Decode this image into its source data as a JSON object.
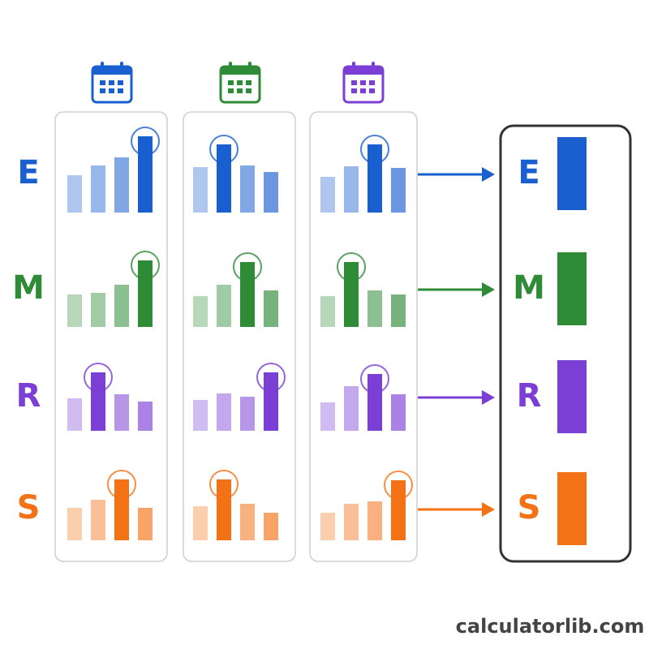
{
  "rows": [
    {
      "label": "E",
      "color": "#1a5fd0"
    },
    {
      "label": "M",
      "color": "#2e8b36"
    },
    {
      "label": "R",
      "color": "#7b3fd6"
    },
    {
      "label": "S",
      "color": "#f47216"
    }
  ],
  "footer": "calculatorlib.com"
}
